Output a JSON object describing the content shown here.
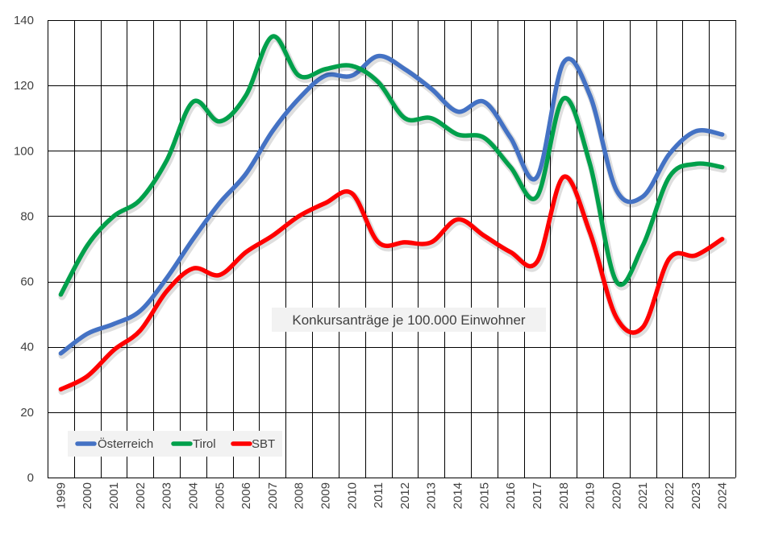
{
  "chart_data": {
    "type": "line",
    "x": [
      "1999",
      "2000",
      "2001",
      "2002",
      "2003",
      "2004",
      "2005",
      "2006",
      "2007",
      "2008",
      "2009",
      "2010",
      "2011",
      "2012",
      "2013",
      "2014",
      "2015",
      "2016",
      "2017",
      "2018",
      "2019",
      "2020",
      "2021",
      "2022",
      "2023",
      "2024"
    ],
    "series": [
      {
        "name": "Österreich",
        "color": "#4472C4",
        "values": [
          38,
          44,
          47,
          51,
          61,
          73,
          84,
          93,
          106,
          116,
          123,
          123,
          129,
          125,
          119,
          112,
          115,
          104,
          92,
          127,
          117,
          88,
          86,
          99,
          106,
          105
        ]
      },
      {
        "name": "Tirol",
        "color": "#00A04B",
        "values": [
          56,
          71,
          80,
          85,
          97,
          115,
          109,
          117,
          135,
          123,
          125,
          126,
          121,
          110,
          110,
          105,
          104,
          95,
          86,
          116,
          96,
          60,
          71,
          92,
          96,
          95
        ]
      },
      {
        "name": "SBT",
        "color": "#FF0000",
        "values": [
          27,
          31,
          39,
          45,
          57,
          64,
          62,
          69,
          74,
          80,
          84,
          87,
          72,
          72,
          72,
          79,
          74,
          69,
          66,
          92,
          75,
          49,
          46,
          67,
          68,
          73
        ]
      }
    ],
    "ylim": [
      0,
      140
    ],
    "yticks": [
      0,
      20,
      40,
      60,
      80,
      100,
      120,
      140
    ],
    "grid": true,
    "legend_position": "bottom-left",
    "annotation": "Konkursanträge je 100.000 Einwohner"
  }
}
